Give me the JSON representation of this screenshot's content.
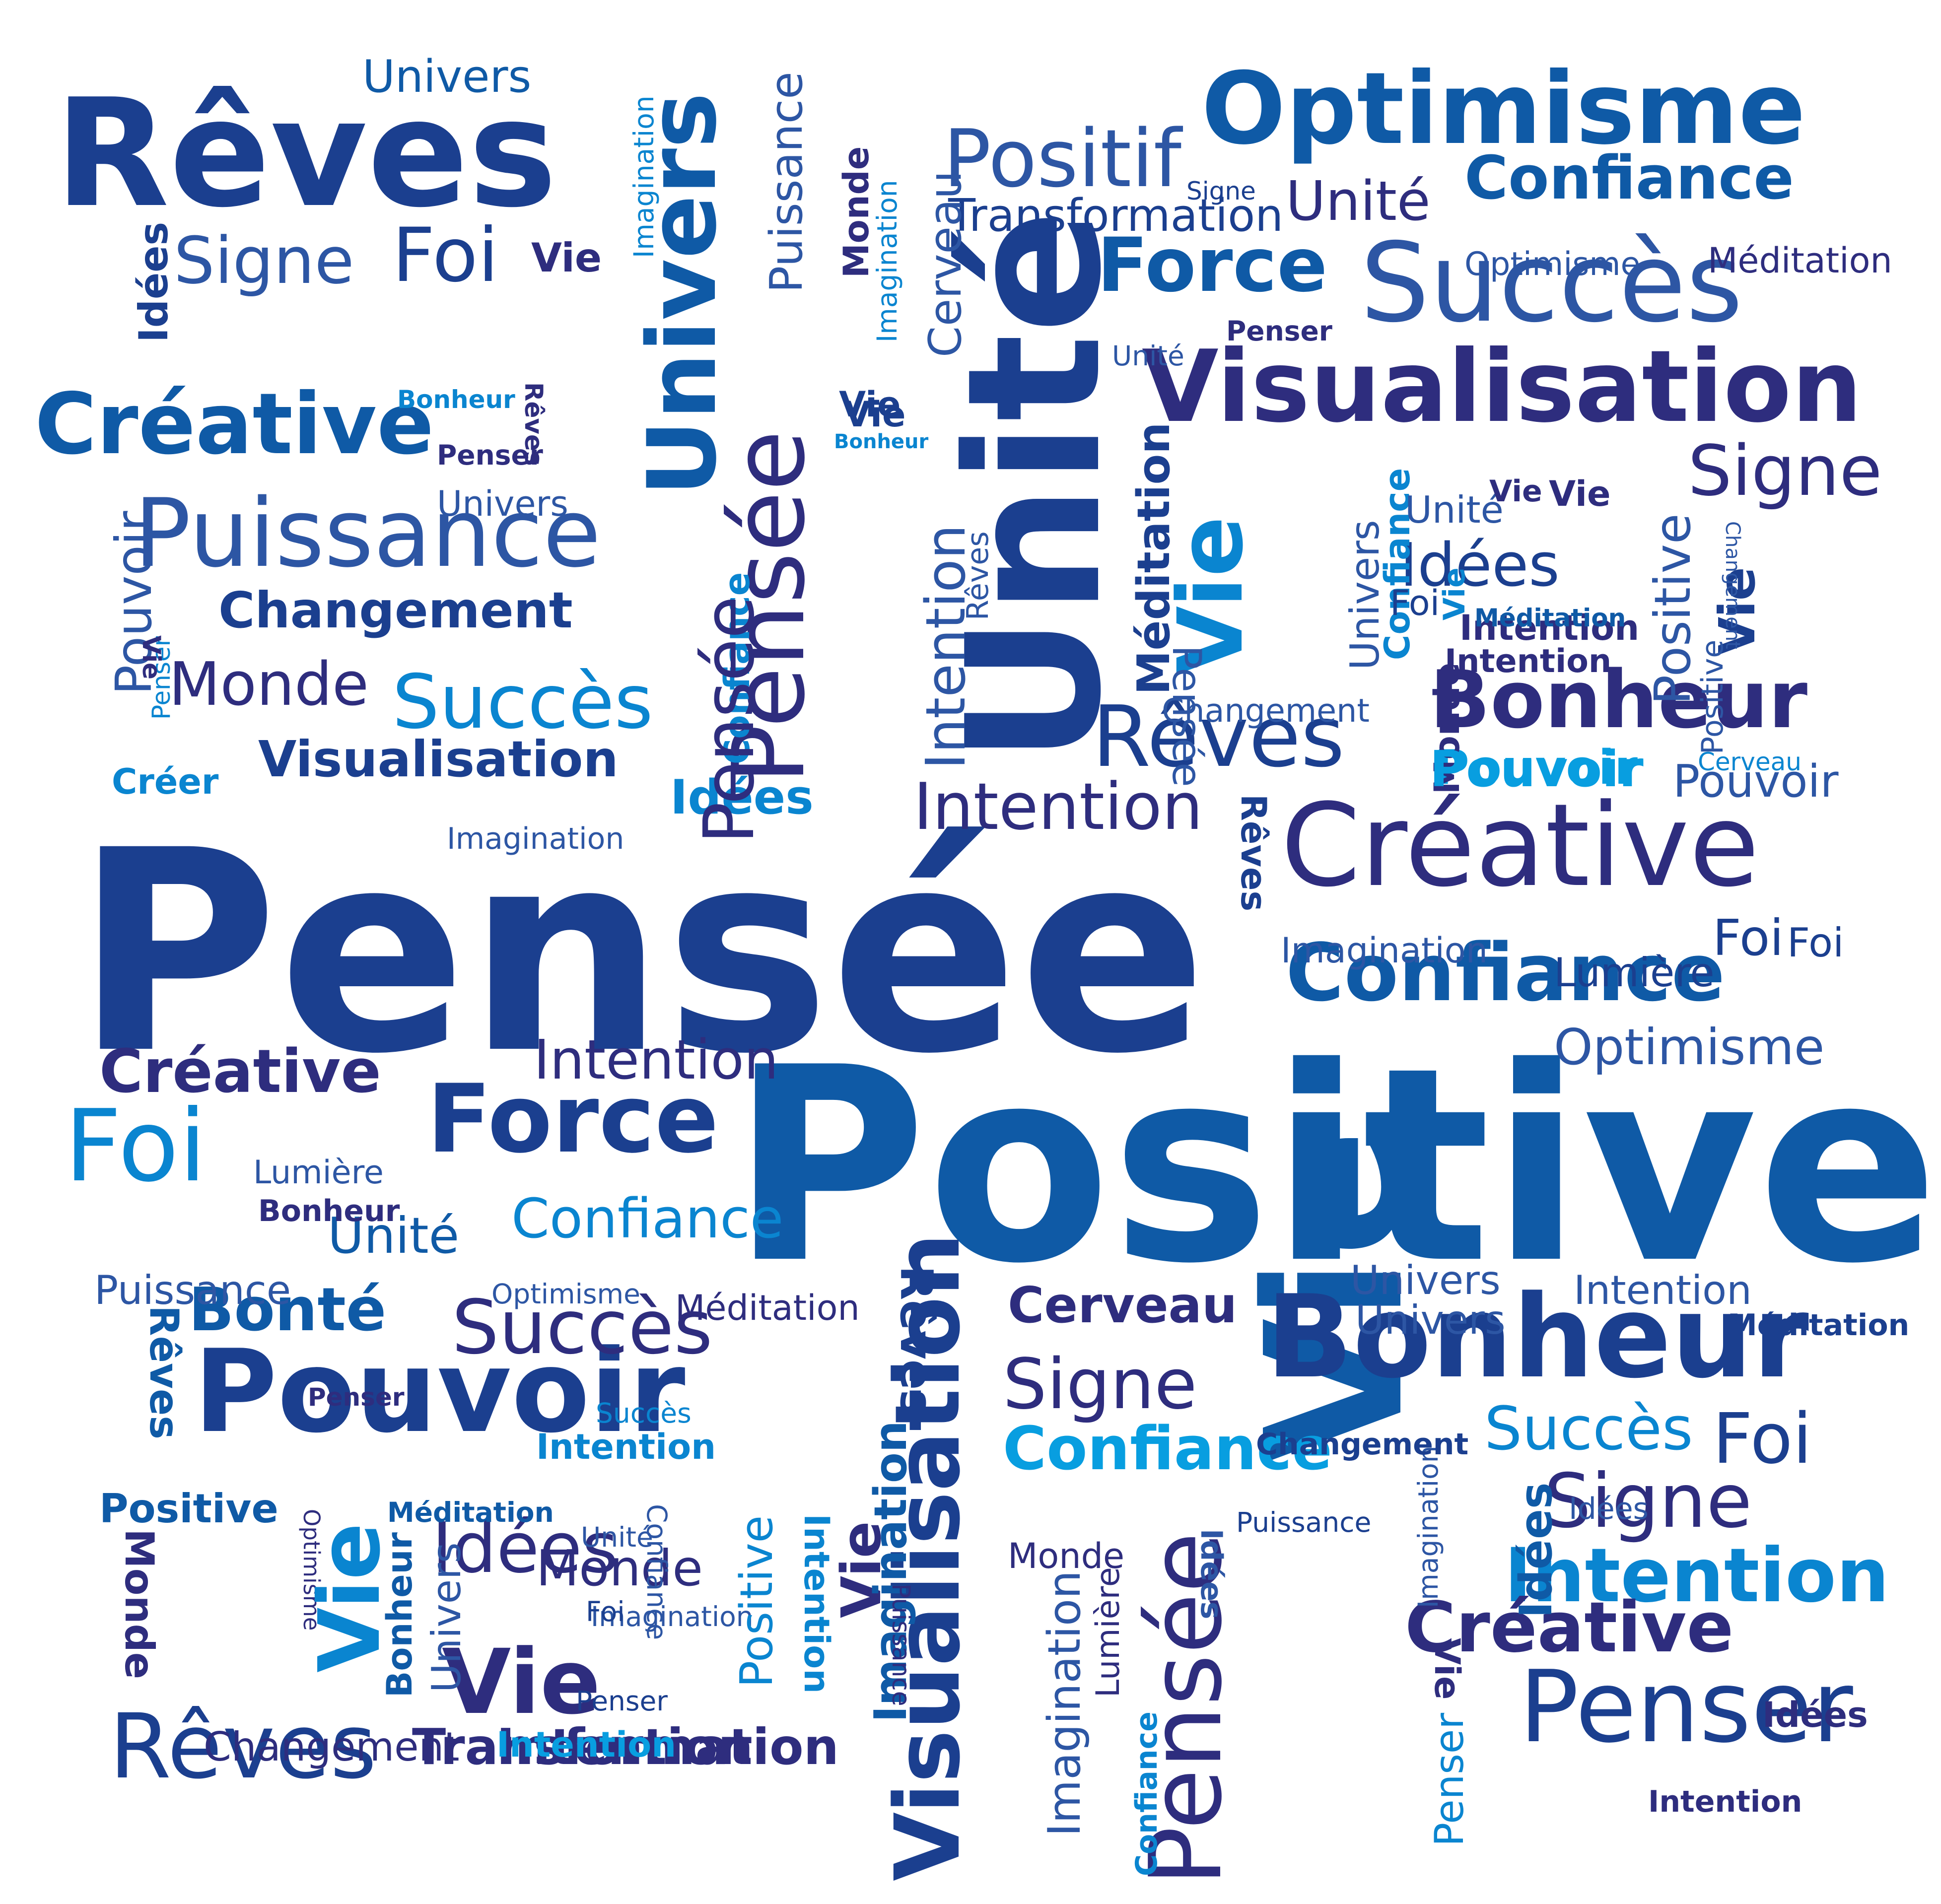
{
  "palette": {
    "navy": "#1b3f8f",
    "indigo": "#2e2d7e",
    "royal": "#0f5aa6",
    "azure": "#0a85d0",
    "sky": "#089ee0",
    "steel": "#2d56a4"
  },
  "words": [
    {
      "t": "Pensée"
    },
    {
      "t": "Positive"
    },
    {
      "t": "Unité"
    },
    {
      "t": "Vie"
    },
    {
      "t": "Rêves"
    },
    {
      "t": "Optimisme"
    },
    {
      "t": "Visualisation"
    },
    {
      "t": "Succès"
    },
    {
      "t": "Pensée"
    },
    {
      "t": "Univers"
    },
    {
      "t": "Créative"
    },
    {
      "t": "Bonheur"
    },
    {
      "t": "Bonheur"
    },
    {
      "t": "Confiance"
    },
    {
      "t": "Intention"
    },
    {
      "t": "Puissance"
    },
    {
      "t": "Pouvoir"
    },
    {
      "t": "Force"
    },
    {
      "t": "Force"
    },
    {
      "t": "Vie"
    },
    {
      "t": "Pensée"
    },
    {
      "t": "Visualisation"
    },
    {
      "t": "Penser"
    },
    {
      "t": "Rêves"
    },
    {
      "t": "Foi"
    },
    {
      "t": "Créative"
    },
    {
      "t": "Créative"
    },
    {
      "t": "Positif"
    },
    {
      "t": "Confiance"
    },
    {
      "t": "Intention"
    },
    {
      "t": "Intention"
    },
    {
      "t": "Succès"
    },
    {
      "t": "Rêves"
    },
    {
      "t": "Signe"
    },
    {
      "t": "Foi"
    },
    {
      "t": "Transformation"
    },
    {
      "t": "Changement"
    },
    {
      "t": "Visualisation"
    },
    {
      "t": "Monde"
    },
    {
      "t": "Succès"
    },
    {
      "t": "Pouvoir"
    },
    {
      "t": "Confiance"
    },
    {
      "t": "Idées"
    },
    {
      "t": "Confiance"
    },
    {
      "t": "Bonté"
    },
    {
      "t": "Succès"
    },
    {
      "t": "Signe"
    },
    {
      "t": "Signe"
    },
    {
      "t": "Idées"
    },
    {
      "t": "Vie"
    },
    {
      "t": "Vie"
    },
    {
      "t": "Cerveau"
    },
    {
      "t": "Intention"
    },
    {
      "t": "Intention"
    },
    {
      "t": "Intention"
    },
    {
      "t": "Signe"
    },
    {
      "t": "Univers"
    },
    {
      "t": "Univers"
    },
    {
      "t": "Unité"
    },
    {
      "t": "Unité"
    },
    {
      "t": "Foi"
    },
    {
      "t": "Foi"
    },
    {
      "t": "Optimisme"
    },
    {
      "t": "Pouvoir"
    },
    {
      "t": "Positive"
    },
    {
      "t": "Positive"
    },
    {
      "t": "Cerveau"
    },
    {
      "t": "Transformation"
    },
    {
      "t": "Vie"
    },
    {
      "t": "Vie"
    },
    {
      "t": "Vie"
    },
    {
      "t": "Vie"
    },
    {
      "t": "Idées"
    },
    {
      "t": "Idées"
    },
    {
      "t": "Idées"
    },
    {
      "t": "Idées"
    },
    {
      "t": "Idées"
    },
    {
      "t": "Idées"
    },
    {
      "t": "Monde"
    },
    {
      "t": "Monde"
    },
    {
      "t": "Monde"
    },
    {
      "t": "Monde"
    },
    {
      "t": "Monde"
    },
    {
      "t": "Méditation"
    },
    {
      "t": "Méditation"
    },
    {
      "t": "Méditation"
    },
    {
      "t": "Méditation"
    },
    {
      "t": "Méditation"
    },
    {
      "t": "Imagination"
    },
    {
      "t": "Imagination"
    },
    {
      "t": "Imagination"
    },
    {
      "t": "Imagination"
    },
    {
      "t": "Imagination"
    },
    {
      "t": "Imagination"
    },
    {
      "t": "Imagination"
    },
    {
      "t": "Imagination"
    },
    {
      "t": "Rêves"
    },
    {
      "t": "Rêves"
    },
    {
      "t": "Rêves"
    },
    {
      "t": "Rêves"
    },
    {
      "t": "Rêves"
    },
    {
      "t": "Confiance"
    },
    {
      "t": "Confiance"
    },
    {
      "t": "Confiance"
    },
    {
      "t": "Confiance"
    },
    {
      "t": "Changement"
    },
    {
      "t": "Changement"
    },
    {
      "t": "Changement"
    },
    {
      "t": "Changement"
    },
    {
      "t": "Lumière"
    },
    {
      "t": "Lumière"
    },
    {
      "t": "Lumière"
    },
    {
      "t": "Penser"
    },
    {
      "t": "Penser"
    },
    {
      "t": "Penser"
    },
    {
      "t": "Penser"
    },
    {
      "t": "Penser"
    },
    {
      "t": "Bonheur"
    },
    {
      "t": "Bonheur"
    },
    {
      "t": "Bonheur"
    },
    {
      "t": "Bonheur"
    },
    {
      "t": "Intention"
    },
    {
      "t": "Intention"
    },
    {
      "t": "Intention"
    },
    {
      "t": "Intention"
    },
    {
      "t": "Intention"
    },
    {
      "t": "Intention"
    },
    {
      "t": "Univers"
    },
    {
      "t": "Univers"
    },
    {
      "t": "Univers"
    },
    {
      "t": "Univers"
    },
    {
      "t": "Unité"
    },
    {
      "t": "Unité"
    },
    {
      "t": "Unité"
    },
    {
      "t": "Optimisme"
    },
    {
      "t": "Optimisme"
    },
    {
      "t": "Optimisme"
    },
    {
      "t": "Puissance"
    },
    {
      "t": "Puissance"
    },
    {
      "t": "Puissance"
    },
    {
      "t": "Puissance"
    },
    {
      "t": "Signe"
    },
    {
      "t": "Cerveau"
    },
    {
      "t": "Créer"
    },
    {
      "t": "Pouvoir"
    },
    {
      "t": "Pouvoir"
    },
    {
      "t": "Positive"
    },
    {
      "t": "Positive"
    },
    {
      "t": "Créative"
    },
    {
      "t": "Foi"
    },
    {
      "t": "Foi"
    },
    {
      "t": "Foi"
    },
    {
      "t": "Vie"
    },
    {
      "t": "Vie"
    },
    {
      "t": "Vie"
    },
    {
      "t": "Vie"
    },
    {
      "t": "Succès"
    },
    {
      "t": "Penser"
    },
    {
      "t": "Pensée"
    },
    {
      "t": "Vie"
    },
    {
      "t": "Vie"
    },
    {
      "t": "Méditation"
    },
    {
      "t": "Pensée"
    }
  ]
}
